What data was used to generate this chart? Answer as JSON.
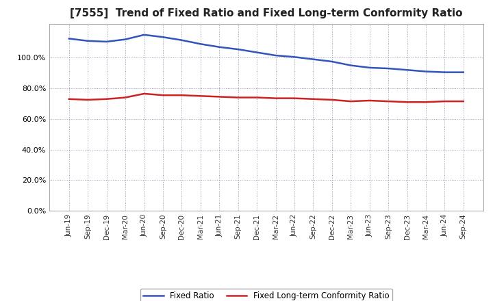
{
  "title": "[7555]  Trend of Fixed Ratio and Fixed Long-term Conformity Ratio",
  "title_fontsize": 11,
  "x_labels": [
    "Jun-19",
    "Sep-19",
    "Dec-19",
    "Mar-20",
    "Jun-20",
    "Sep-20",
    "Dec-20",
    "Mar-21",
    "Jun-21",
    "Sep-21",
    "Dec-21",
    "Mar-22",
    "Jun-22",
    "Sep-22",
    "Dec-22",
    "Mar-23",
    "Jun-23",
    "Sep-23",
    "Dec-23",
    "Mar-24",
    "Jun-24",
    "Sep-24"
  ],
  "fixed_ratio": [
    112.5,
    111.0,
    110.5,
    112.0,
    115.0,
    113.5,
    111.5,
    109.0,
    107.0,
    105.5,
    103.5,
    101.5,
    100.5,
    99.0,
    97.5,
    95.0,
    93.5,
    93.0,
    92.0,
    91.0,
    90.5,
    90.5
  ],
  "fixed_lt_ratio": [
    73.0,
    72.5,
    73.0,
    74.0,
    76.5,
    75.5,
    75.5,
    75.0,
    74.5,
    74.0,
    74.0,
    73.5,
    73.5,
    73.0,
    72.5,
    71.5,
    72.0,
    71.5,
    71.0,
    71.0,
    71.5,
    71.5
  ],
  "fixed_ratio_color": "#3355BB",
  "fixed_lt_ratio_color": "#CC2222",
  "grid_color": "#9999BB",
  "background_color": "#FFFFFF",
  "plot_bg_color": "#FFFFFF",
  "ylim": [
    0,
    122
  ],
  "yticks": [
    0,
    20,
    40,
    60,
    80,
    100
  ],
  "legend_fixed": "Fixed Ratio",
  "legend_fixed_lt": "Fixed Long-term Conformity Ratio"
}
